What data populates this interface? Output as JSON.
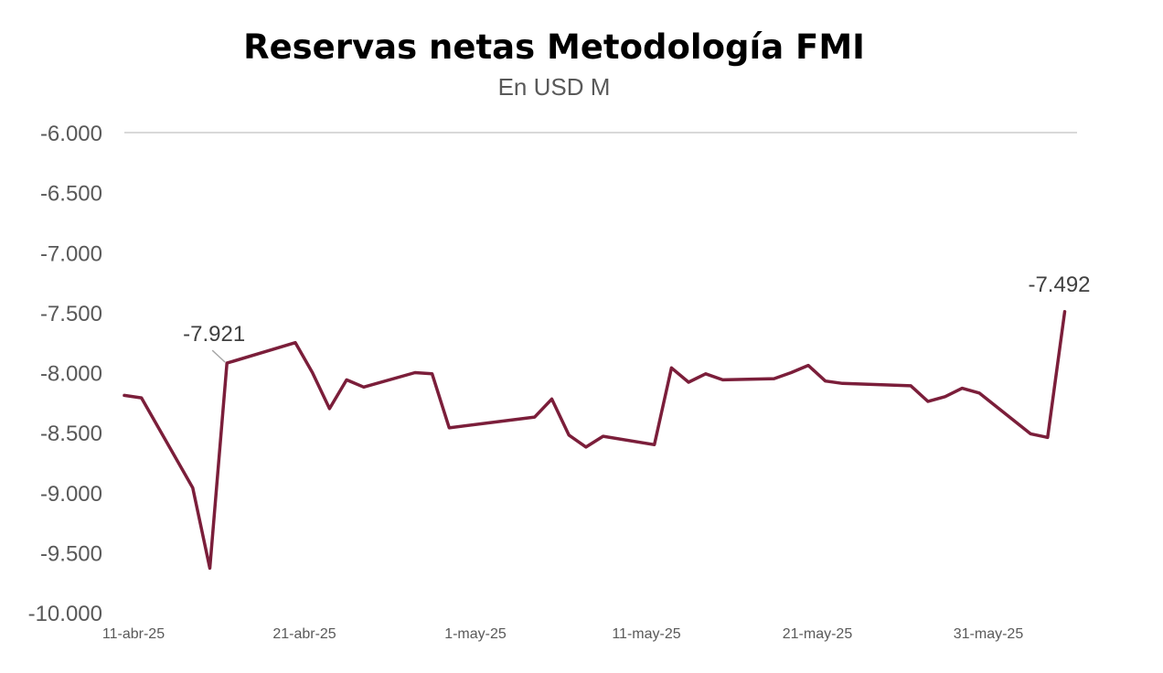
{
  "chart_data": {
    "type": "line",
    "title": "Reservas netas Metodología FMI",
    "subtitle": "En USD M",
    "xlabel": "",
    "ylabel": "",
    "ylim": [
      -10000,
      -6000
    ],
    "y_ticks": [
      -6000,
      -6500,
      -7000,
      -7500,
      -8000,
      -8500,
      -9000,
      -9500,
      -10000
    ],
    "y_tick_labels": [
      "-6.000",
      "-6.500",
      "-7.000",
      "-7.500",
      "-8.000",
      "-8.500",
      "-9.000",
      "-9.500",
      "-10.000"
    ],
    "x_range": [
      "2025-04-11",
      "2025-06-06"
    ],
    "x_ticks": [
      "2025-04-11",
      "2025-04-21",
      "2025-05-01",
      "2025-05-11",
      "2025-05-21",
      "2025-05-31"
    ],
    "x_tick_labels": [
      "11-abr-25",
      "21-abr-25",
      "1-may-25",
      "11-may-25",
      "21-may-25",
      "31-may-25"
    ],
    "grid": false,
    "line_color": "#7b1e3a",
    "series": [
      {
        "points": [
          [
            "2025-04-11",
            -8190
          ],
          [
            "2025-04-12",
            -8210
          ],
          [
            "2025-04-15",
            -8960
          ],
          [
            "2025-04-16",
            -9630
          ],
          [
            "2025-04-17",
            -7921
          ],
          [
            "2025-04-21",
            -7750
          ],
          [
            "2025-04-22",
            -8000
          ],
          [
            "2025-04-23",
            -8300
          ],
          [
            "2025-04-24",
            -8060
          ],
          [
            "2025-04-25",
            -8120
          ],
          [
            "2025-04-28",
            -8000
          ],
          [
            "2025-04-29",
            -8010
          ],
          [
            "2025-04-30",
            -8460
          ],
          [
            "2025-05-05",
            -8370
          ],
          [
            "2025-05-06",
            -8220
          ],
          [
            "2025-05-07",
            -8520
          ],
          [
            "2025-05-08",
            -8620
          ],
          [
            "2025-05-09",
            -8530
          ],
          [
            "2025-05-12",
            -8600
          ],
          [
            "2025-05-13",
            -7960
          ],
          [
            "2025-05-14",
            -8080
          ],
          [
            "2025-05-15",
            -8010
          ],
          [
            "2025-05-16",
            -8060
          ],
          [
            "2025-05-19",
            -8050
          ],
          [
            "2025-05-20",
            -8000
          ],
          [
            "2025-05-21",
            -7940
          ],
          [
            "2025-05-22",
            -8070
          ],
          [
            "2025-05-23",
            -8090
          ],
          [
            "2025-05-27",
            -8110
          ],
          [
            "2025-05-28",
            -8240
          ],
          [
            "2025-05-29",
            -8200
          ],
          [
            "2025-05-30",
            -8130
          ],
          [
            "2025-05-31",
            -8170
          ],
          [
            "2025-06-03",
            -8510
          ],
          [
            "2025-06-04",
            -8540
          ],
          [
            "2025-06-05",
            -7492
          ]
        ]
      }
    ],
    "annotations": [
      {
        "x": "2025-04-17",
        "y": -7921,
        "text": "-7.921"
      },
      {
        "x": "2025-06-05",
        "y": -7492,
        "text": "-7.492"
      }
    ]
  }
}
